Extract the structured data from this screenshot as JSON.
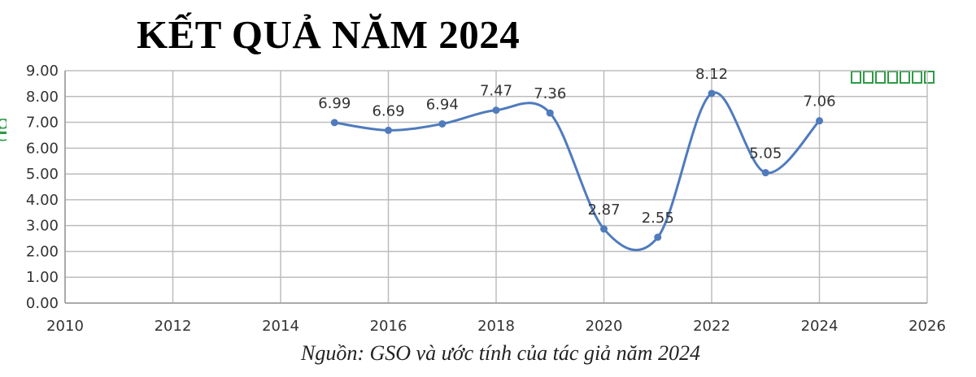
{
  "title": "KẾT QUẢ NĂM 2024",
  "source": "Nguồn: GSO và ước tính của tác giả năm 2024",
  "legend_color": "#2e9b46",
  "edge_glyph": "g",
  "chart_data": {
    "type": "line",
    "smooth": true,
    "series_color": "#4f7bbd",
    "grid": true,
    "xlim": [
      2010,
      2026
    ],
    "ylim": [
      0,
      9
    ],
    "x_ticks": [
      "2010",
      "2012",
      "2014",
      "2016",
      "2018",
      "2020",
      "2022",
      "2024",
      "2026"
    ],
    "y_ticks": [
      "0.00",
      "1.00",
      "2.00",
      "3.00",
      "4.00",
      "5.00",
      "6.00",
      "7.00",
      "8.00",
      "9.00"
    ],
    "x": [
      2015,
      2016,
      2017,
      2018,
      2019,
      2020,
      2021,
      2022,
      2023,
      2024
    ],
    "values": [
      6.99,
      6.69,
      6.94,
      7.47,
      7.36,
      2.87,
      2.55,
      8.12,
      5.05,
      7.06
    ],
    "labels": [
      "6.99",
      "6.69",
      "6.94",
      "7.47",
      "7.36",
      "2.87",
      "2.55",
      "8.12",
      "5.05",
      "7.06"
    ]
  }
}
